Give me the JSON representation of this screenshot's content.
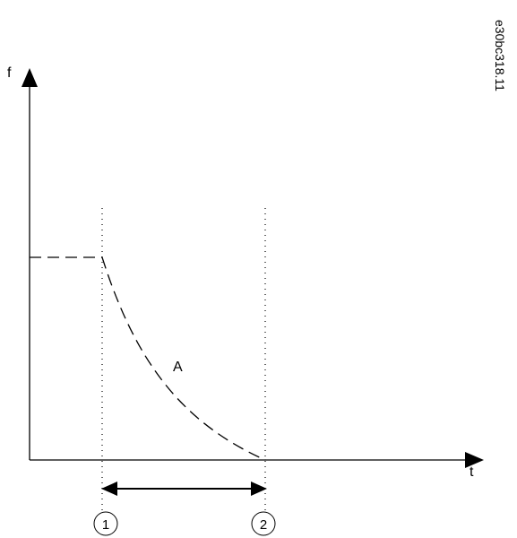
{
  "document_id": "e30bc318.11",
  "axes": {
    "y_label": "f",
    "x_label": "t"
  },
  "curve": {
    "label": "A"
  },
  "markers": [
    {
      "label": "1"
    },
    {
      "label": "2"
    }
  ],
  "colors": {
    "stroke": "#000000",
    "background": "#ffffff"
  }
}
